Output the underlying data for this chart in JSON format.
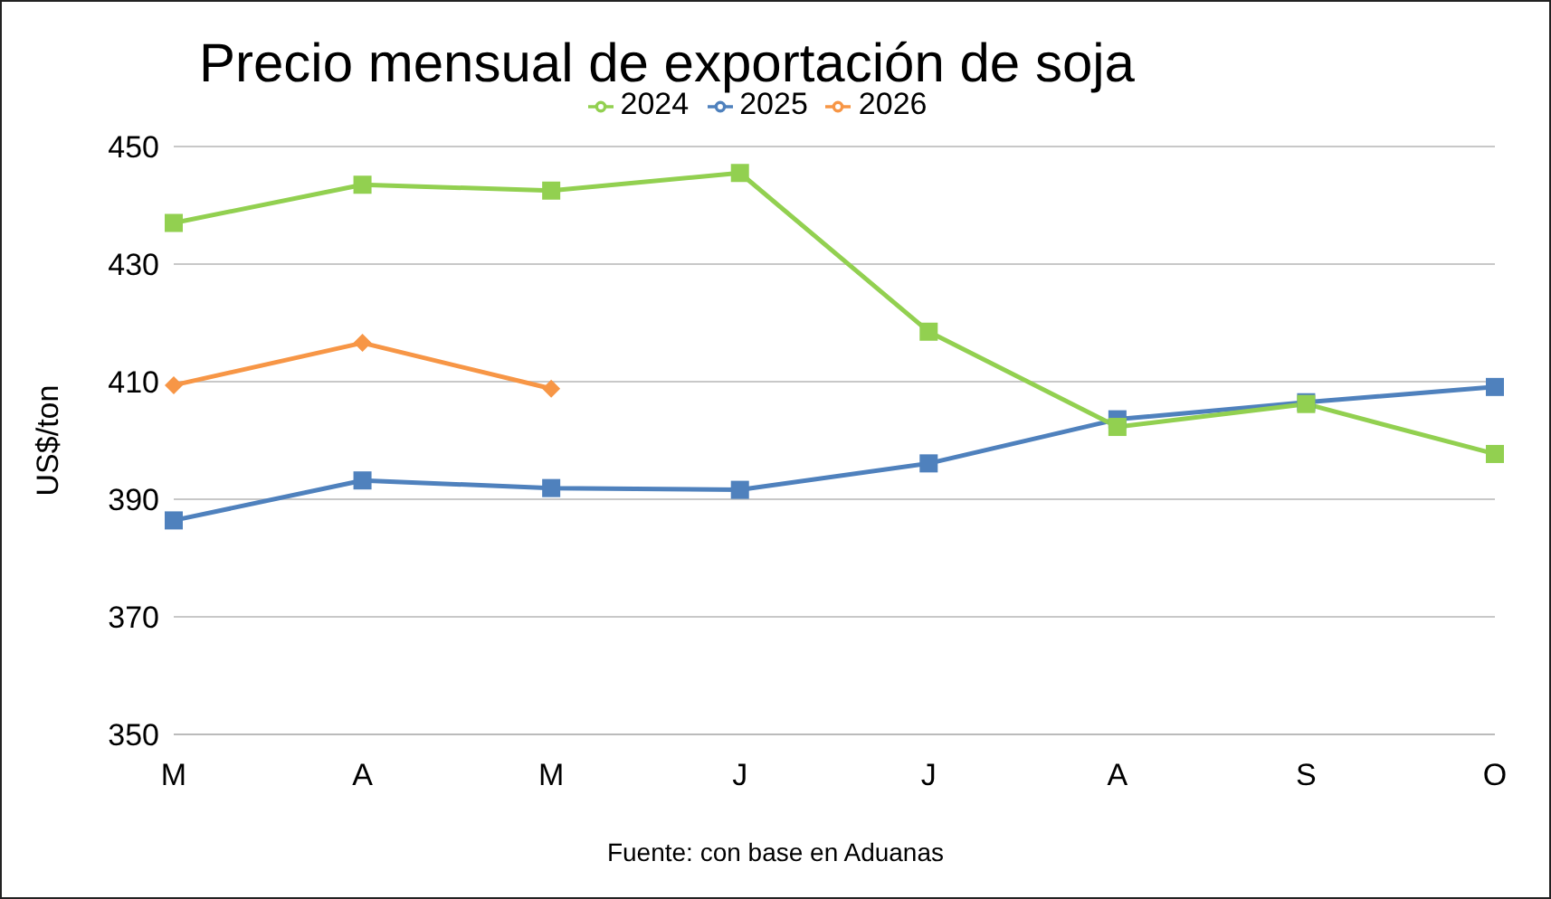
{
  "chart_data": {
    "type": "line",
    "title": "Precio mensual de exportación de soja",
    "ylabel": "US$/ton",
    "categories": [
      "M",
      "A",
      "M",
      "J",
      "J",
      "A",
      "S",
      "O"
    ],
    "series": [
      {
        "name": "2024",
        "color": "#92d050",
        "marker": "square",
        "values": [
          437,
          443.5,
          442.5,
          445.5,
          418.5,
          402.3,
          406.2,
          397.7
        ]
      },
      {
        "name": "2025",
        "color": "#4f81bd",
        "marker": "square",
        "values": [
          386.4,
          393.2,
          391.9,
          391.6,
          396.1,
          403.6,
          406.5,
          409.1
        ]
      },
      {
        "name": "2026",
        "color": "#f79646",
        "marker": "diamond",
        "values": [
          409.4,
          416.6,
          408.8,
          null,
          null,
          null,
          null,
          null
        ]
      }
    ],
    "ylim": [
      350,
      450
    ],
    "yticks": [
      350,
      370,
      390,
      410,
      430,
      450
    ],
    "grid": "y",
    "legend": "top",
    "line_style": "solid",
    "annotations": [
      "Fuente: con base en Aduanas"
    ]
  }
}
